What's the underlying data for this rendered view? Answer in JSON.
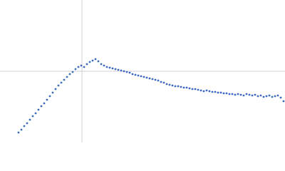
{
  "chart_data": {
    "type": "scatter",
    "x": [
      26,
      30,
      34,
      38,
      42,
      46,
      50,
      54,
      58,
      62,
      66,
      70,
      74,
      78,
      82,
      86,
      90,
      94,
      98,
      102,
      106,
      110,
      114,
      118,
      122,
      126,
      130,
      134,
      138,
      142,
      146,
      150,
      154,
      158,
      162,
      166,
      170,
      174,
      178,
      182,
      186,
      190,
      194,
      198,
      202,
      206,
      210,
      214,
      218,
      222,
      226,
      230,
      234,
      238,
      242,
      246,
      250,
      254,
      258,
      262,
      266,
      270,
      274,
      278,
      282,
      286,
      290,
      294,
      298,
      302,
      306,
      310,
      314,
      318,
      322,
      326,
      330,
      334,
      338,
      342,
      346,
      350,
      354,
      358,
      362,
      366,
      370,
      374,
      378,
      382,
      386,
      390,
      394,
      398
    ],
    "values": [
      14,
      18,
      23,
      27,
      32,
      37,
      41,
      46,
      51,
      55,
      60,
      65,
      70,
      75,
      80,
      84,
      88,
      92,
      96,
      99,
      103,
      106,
      108,
      106,
      110,
      113,
      115,
      117,
      114,
      110,
      108,
      106,
      105,
      104,
      103,
      102,
      101,
      100,
      99,
      98,
      96,
      95,
      94,
      93,
      92,
      91,
      90,
      89,
      88,
      87,
      85,
      84,
      82,
      81,
      80,
      79,
      79,
      78,
      77,
      77,
      76,
      75,
      75,
      74,
      73,
      72,
      73,
      72,
      71,
      71,
      70,
      70,
      69,
      69,
      68,
      68,
      67,
      68,
      67,
      66,
      68,
      67,
      66,
      67,
      65,
      66,
      64,
      65,
      66,
      64,
      65,
      66,
      63,
      58
    ],
    "color": "#3a6bbf",
    "xlim": [
      0,
      400
    ],
    "ylim": [
      0,
      200
    ],
    "xticks": [
      115
    ],
    "yticks": [
      100
    ],
    "grid": true
  }
}
